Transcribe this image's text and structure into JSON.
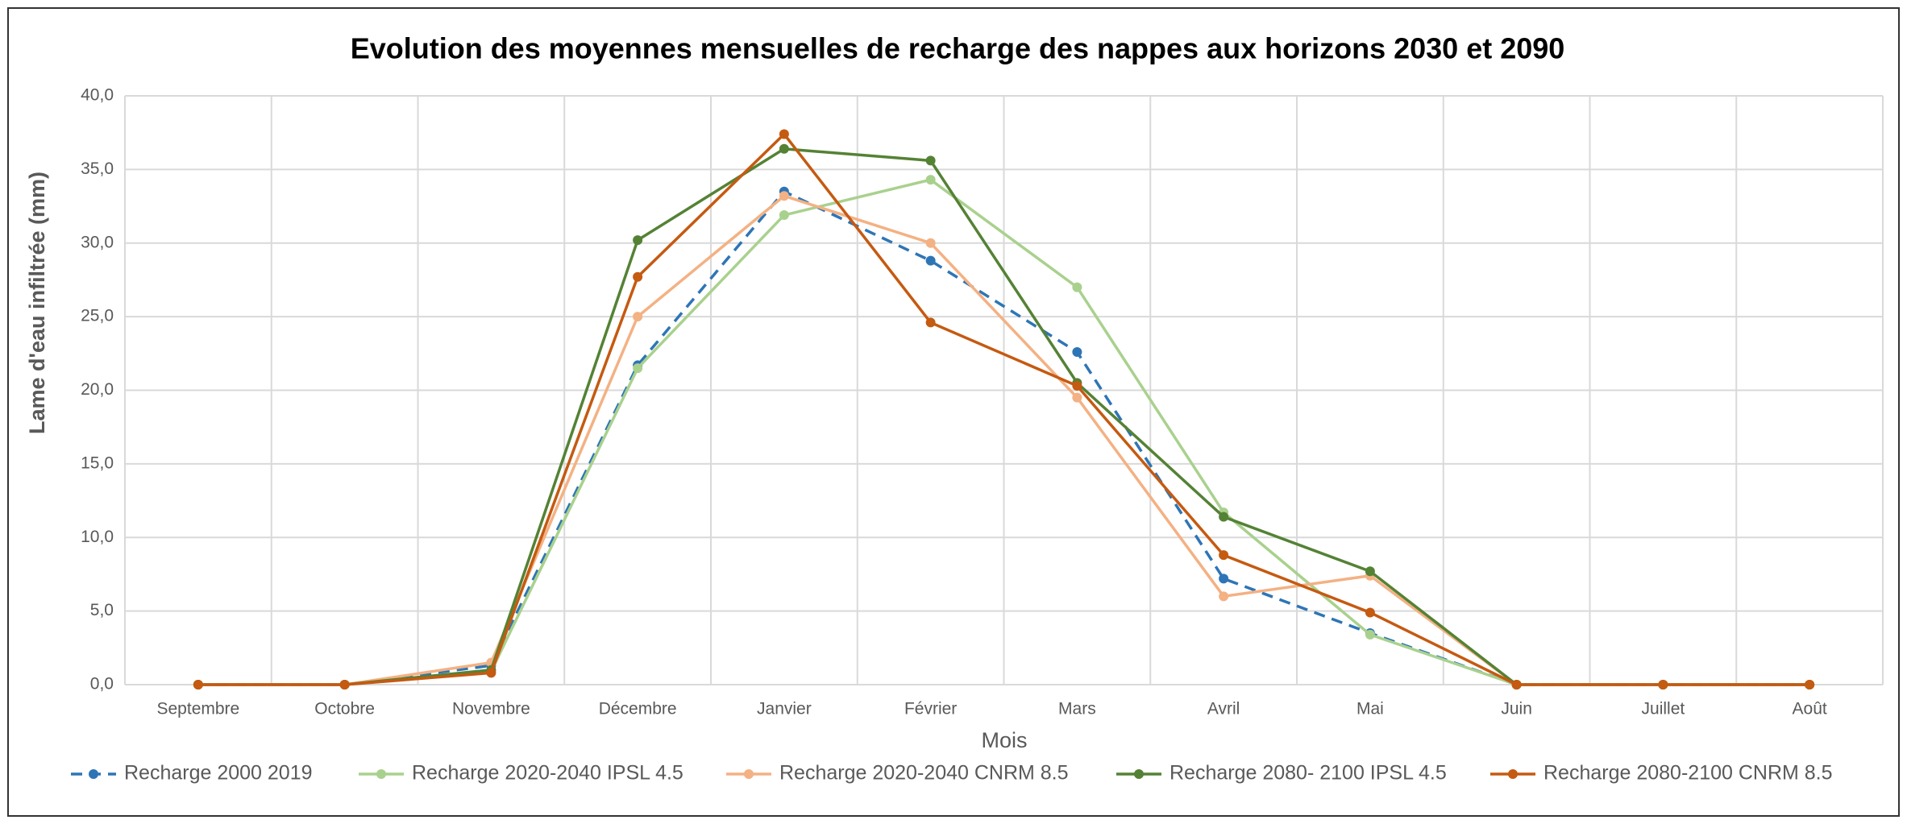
{
  "chart_data": {
    "type": "line",
    "title": "Evolution des moyennes mensuelles de recharge des nappes aux horizons 2030 et 2090",
    "xlabel": "Mois",
    "ylabel": "Lame d'eau infiltrée (mm)",
    "categories": [
      "Septembre",
      "Octobre",
      "Novembre",
      "Décembre",
      "Janvier",
      "Février",
      "Mars",
      "Avril",
      "Mai",
      "Juin",
      "Juillet",
      "Août"
    ],
    "ylim": [
      0,
      40
    ],
    "yticks": [
      {
        "value": 0,
        "label": "0,0"
      },
      {
        "value": 5,
        "label": "5,0"
      },
      {
        "value": 10,
        "label": "10,0"
      },
      {
        "value": 15,
        "label": "15,0"
      },
      {
        "value": 20,
        "label": "20,0"
      },
      {
        "value": 25,
        "label": "25,0"
      },
      {
        "value": 30,
        "label": "30,0"
      },
      {
        "value": 35,
        "label": "35,0"
      },
      {
        "value": 40,
        "label": "40,0"
      }
    ],
    "grid": true,
    "legend": "bottom",
    "series": [
      {
        "name": "Recharge 2000 2019",
        "color": "#2e75b6",
        "dashed": true,
        "values": [
          0,
          0,
          1.3,
          21.7,
          33.5,
          28.8,
          22.6,
          7.2,
          3.5,
          0,
          0,
          0
        ]
      },
      {
        "name": "Recharge 2020-2040 IPSL 4.5",
        "color": "#a9d18e",
        "values": [
          0,
          0,
          0.9,
          21.5,
          31.9,
          34.3,
          27.0,
          11.7,
          3.4,
          0,
          0,
          0
        ]
      },
      {
        "name": "Recharge 2020-2040 CNRM 8.5",
        "color": "#f4b183",
        "values": [
          0,
          0,
          1.5,
          25.0,
          33.2,
          30.0,
          19.5,
          6.0,
          7.4,
          0,
          0,
          0
        ]
      },
      {
        "name": "Recharge 2080- 2100 IPSL 4.5",
        "color": "#548235",
        "values": [
          0,
          0,
          1.0,
          30.2,
          36.4,
          35.6,
          20.5,
          11.4,
          7.7,
          0,
          0,
          0
        ]
      },
      {
        "name": "Recharge 2080-2100 CNRM 8.5",
        "color": "#c55a11",
        "values": [
          0,
          0,
          0.8,
          27.7,
          37.4,
          24.6,
          20.3,
          8.8,
          4.9,
          0,
          0,
          0
        ]
      }
    ]
  }
}
